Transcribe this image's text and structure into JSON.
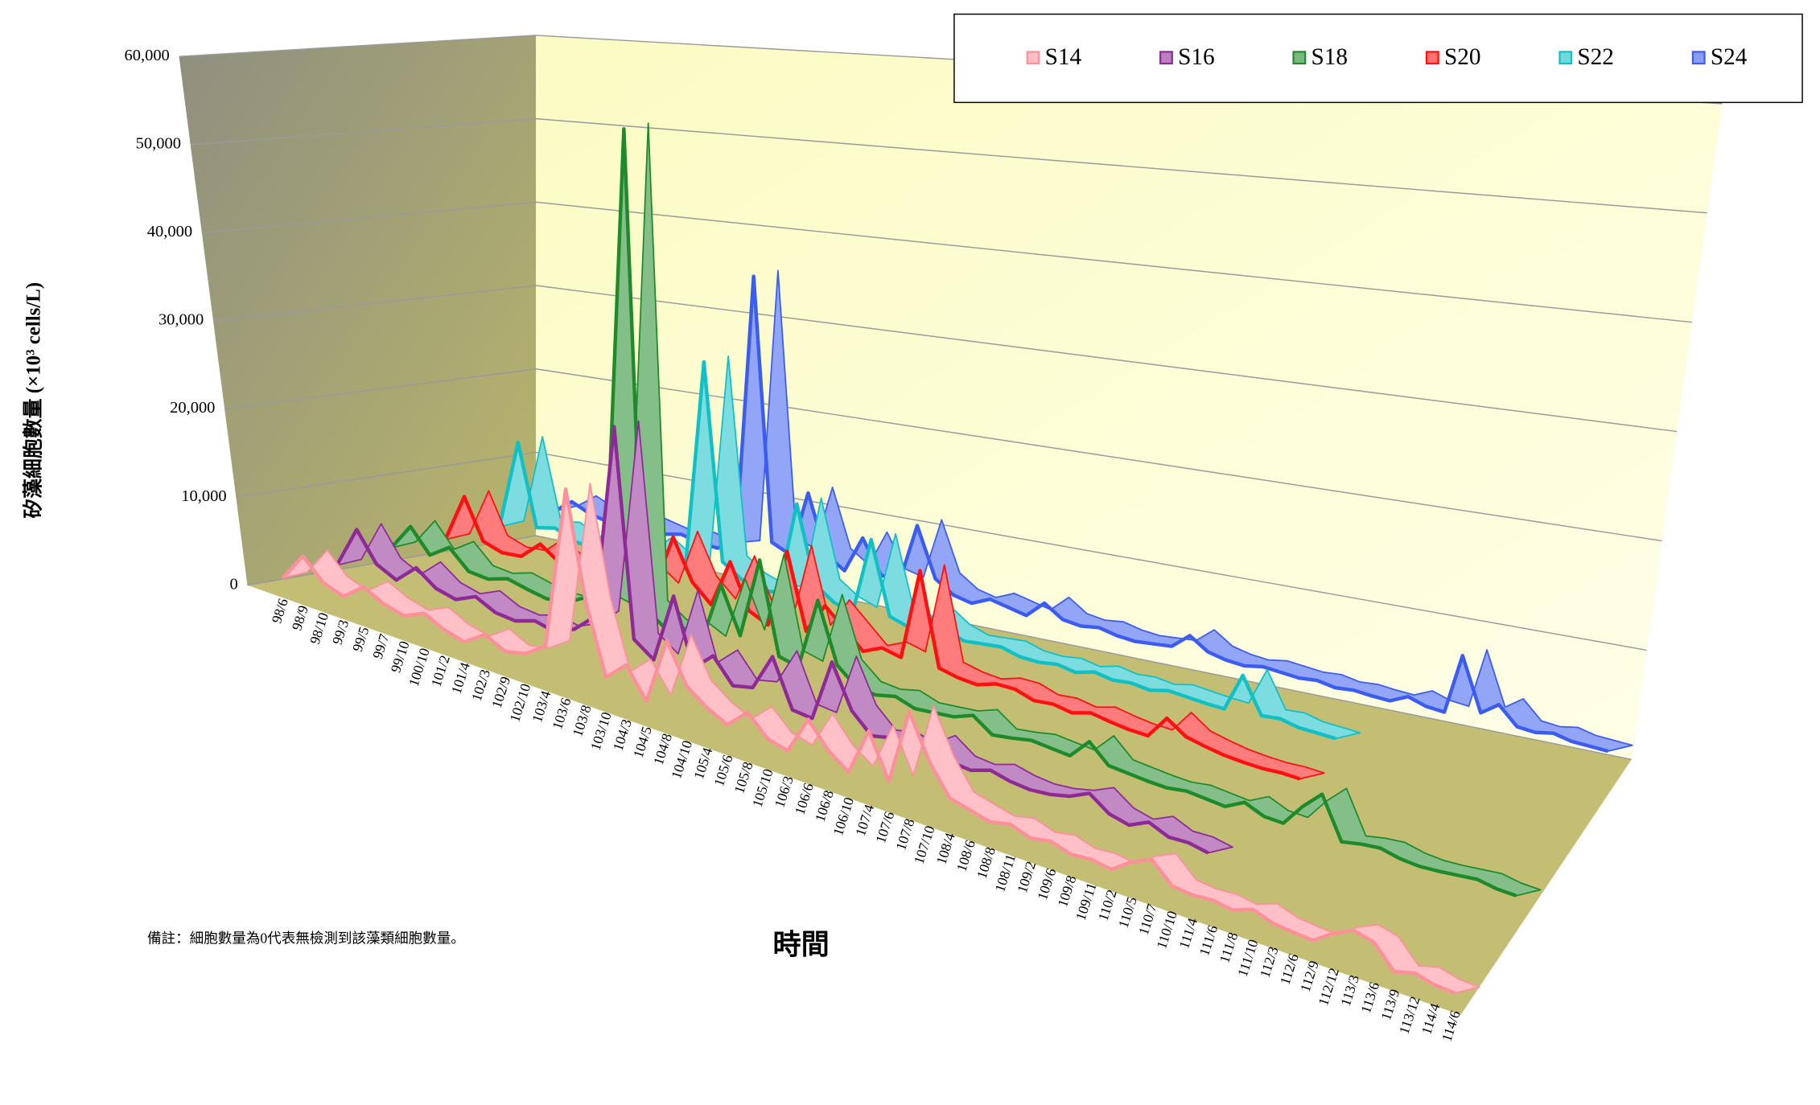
{
  "chart_data": {
    "type": "ribbon3d",
    "y_label": "矽藻細胞數量 (×10³ cells/L)",
    "x_label": "時間",
    "note": "備註：細胞數量為0代表無檢測到該藻類細胞數量。",
    "ylim": [
      0,
      60000
    ],
    "yticks": [
      0,
      {
        "value": 10000,
        "label": "10,000"
      },
      {
        "value": 20000,
        "label": "20,000"
      },
      {
        "value": 30000,
        "label": "30,000"
      },
      {
        "value": 40000,
        "label": "40,000"
      },
      {
        "value": 50000,
        "label": "50,000"
      },
      {
        "value": 60000,
        "label": "60,000"
      }
    ],
    "grid": true,
    "legend": "top-right",
    "categories": [
      "98/6",
      "98/9",
      "98/10",
      "99/3",
      "99/5",
      "99/7",
      "99/10",
      "100/10",
      "101/2",
      "101/4",
      "102/3",
      "102/9",
      "102/10",
      "103/4",
      "103/6",
      "103/8",
      "103/10",
      "104/3",
      "104/5",
      "104/8",
      "104/10",
      "105/4",
      "105/6",
      "105/8",
      "105/10",
      "106/3",
      "106/6",
      "106/8",
      "106/10",
      "107/4",
      "107/6",
      "107/8",
      "107/10",
      "108/4",
      "108/6",
      "108/8",
      "108/11",
      "109/2",
      "109/6",
      "109/8",
      "109/11",
      "110/2",
      "110/5",
      "110/7",
      "110/10",
      "111/4",
      "111/6",
      "111/8",
      "111/10",
      "112/3",
      "112/6",
      "112/9",
      "112/12",
      "113/3",
      "113/6",
      "113/9",
      "113/12",
      "114/4",
      "114/6"
    ],
    "series": [
      {
        "name": "S14",
        "color": "#ff8f9a",
        "values": [
          500,
          3500,
          1500,
          800,
          2500,
          1500,
          1000,
          2000,
          1000,
          500,
          2000,
          1000,
          1500,
          3000,
          20000,
          9000,
          2000,
          4000,
          1000,
          8000,
          4000,
          2500,
          1500,
          3500,
          1500,
          1000,
          5000,
          2500,
          1000,
          6000,
          1500,
          9500,
          5000,
          2000,
          1500,
          1000,
          1500,
          800,
          1200,
          600,
          800,
          500,
          2000,
          3000,
          1000,
          800,
          1000,
          700,
          1500,
          800,
          600,
          500,
          2000,
          3000,
          2500,
          200,
          800,
          300,
          200
        ]
      },
      {
        "name": "S16",
        "color": "#8e2a96",
        "values": [
          500,
          5000,
          2000,
          1000,
          3000,
          1500,
          1000,
          2000,
          1000,
          800,
          1500,
          1000,
          2000,
          4000,
          25000,
          3000,
          1500,
          9000,
          2000,
          4000,
          1500,
          2000,
          6000,
          1000,
          800,
          7500,
          3000,
          1000,
          1500,
          1000,
          2500,
          1000,
          800,
          1500,
          1000,
          800,
          1000,
          1500,
          2500,
          1000,
          500,
          1500,
          600,
          700,
          300,
          null,
          null,
          null,
          null,
          null,
          null,
          null,
          null,
          null,
          null,
          null,
          null,
          null,
          null
        ]
      },
      {
        "name": "S18",
        "color": "#1f8a2a",
        "values": [
          1000,
          4000,
          1500,
          3000,
          1000,
          800,
          1500,
          1000,
          600,
          800,
          2000,
          1500,
          55000,
          3000,
          1500,
          2000,
          1000,
          8000,
          3000,
          12000,
          2000,
          1500,
          9500,
          3000,
          1200,
          1000,
          1500,
          800,
          1000,
          1200,
          2000,
          500,
          800,
          1200,
          1000,
          800,
          3000,
          1000,
          800,
          600,
          500,
          800,
          600,
          400,
          1500,
          600,
          500,
          3000,
          5000,
          400,
          800,
          1000,
          500,
          300,
          400,
          600,
          800,
          400,
          300
        ]
      },
      {
        "name": "S20",
        "color": "#ff1010",
        "values": [
          500,
          6000,
          1500,
          800,
          1000,
          3000,
          1500,
          1000,
          2000,
          800,
          3000,
          1500,
          8000,
          3500,
          1500,
          7000,
          2000,
          1000,
          10000,
          1500,
          5000,
          3000,
          1000,
          2000,
          1500,
          12000,
          1500,
          1000,
          800,
          1500,
          1500,
          800,
          1000,
          600,
          1200,
          800,
          500,
          400,
          3000,
          1500,
          1000,
          600,
          400,
          300,
          400,
          300,
          null,
          null,
          null,
          null,
          null,
          null,
          null,
          null,
          null,
          null,
          null,
          null,
          null
        ]
      },
      {
        "name": "S22",
        "color": "#10c0c4",
        "values": [
          500,
          11000,
          1500,
          2000,
          1000,
          800,
          1500,
          1000,
          3000,
          1500,
          1000,
          26000,
          3000,
          1500,
          800,
          1000,
          12000,
          3000,
          1500,
          800,
          10000,
          1500,
          800,
          3000,
          1500,
          800,
          1000,
          1200,
          600,
          500,
          800,
          400,
          1000,
          600,
          800,
          500,
          1000,
          800,
          600,
          500,
          5000,
          800,
          1000,
          500,
          400,
          300,
          null,
          null,
          null,
          null,
          null,
          null,
          null,
          null,
          null,
          null,
          null,
          null,
          null
        ]
      },
      {
        "name": "S24",
        "color": "#3a5cf0",
        "values": [
          800,
          2500,
          1500,
          1000,
          2000,
          1500,
          1000,
          1500,
          1000,
          800,
          1500,
          35000,
          3000,
          2000,
          10000,
          3000,
          1500,
          6000,
          2000,
          1500,
          9000,
          3000,
          1500,
          1000,
          2000,
          1500,
          1000,
          3000,
          1500,
          1200,
          1500,
          1000,
          800,
          1000,
          1200,
          3000,
          1500,
          1000,
          800,
          1200,
          1000,
          800,
          1000,
          600,
          800,
          600,
          500,
          1500,
          800,
          600,
          8000,
          1500,
          3000,
          800,
          600,
          1000,
          500,
          400,
          300
        ]
      }
    ]
  }
}
